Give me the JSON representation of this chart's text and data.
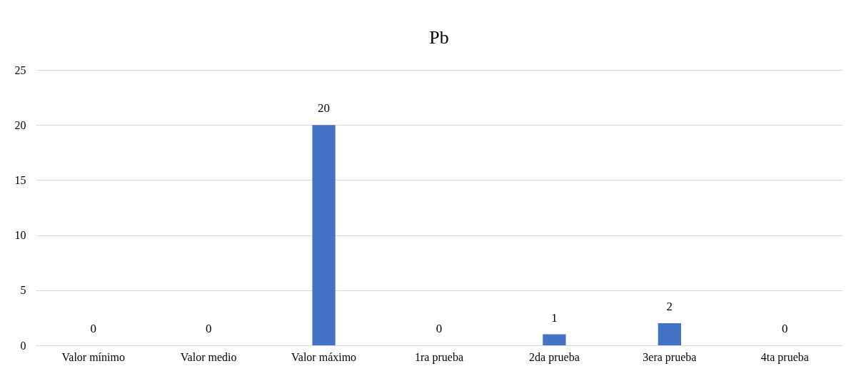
{
  "chart_data": {
    "type": "bar",
    "title": "Pb",
    "categories": [
      "Valor mínimo",
      "Valor medio",
      "Valor máximo",
      "1ra prueba",
      "2da prueba",
      "3era prueba",
      "4ta prueba"
    ],
    "values": [
      0,
      0,
      20,
      0,
      1,
      2,
      0
    ],
    "color": "#4472c4",
    "ylim": [
      0,
      25
    ],
    "yticks": [
      0,
      5,
      10,
      15,
      20,
      25
    ],
    "grid": "y",
    "data_labels": true
  }
}
